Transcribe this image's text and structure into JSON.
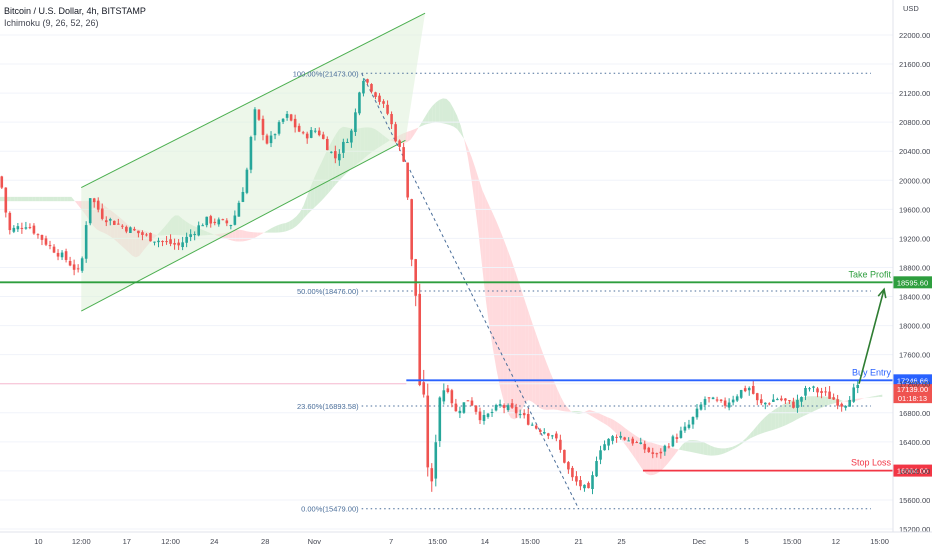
{
  "header": {
    "symbol": "Bitcoin / U.S. Dollar, 4h, BITSTAMP",
    "indicator": "Ichimoku (9, 26, 52, 26)"
  },
  "colors": {
    "up": "#26a69a",
    "down": "#ef5350",
    "take_profit": "#2e9e3e",
    "buy_entry": "#2962ff",
    "stop_loss": "#f23645",
    "fib": "#4a6e9a",
    "channel": "#4caf50",
    "kumo_green": "#c8e6c9",
    "kumo_red": "#ffcdd2",
    "target_arrow": "#2e7d32"
  },
  "chart_data": {
    "type": "candlestick",
    "title": "Bitcoin / U.S. Dollar, 4h, BITSTAMP",
    "y_axis_label": "USD",
    "ylim": [
      15200,
      22400
    ],
    "y_ticks": [
      15200,
      15600,
      16000,
      16400,
      16800,
      17200,
      17600,
      18000,
      18400,
      18800,
      19200,
      19600,
      20000,
      20400,
      20800,
      21200,
      21600,
      22000
    ],
    "x_ticks": [
      {
        "label": "10",
        "t": 0.043
      },
      {
        "label": "12:00",
        "t": 0.091
      },
      {
        "label": "17",
        "t": 0.142
      },
      {
        "label": "12:00",
        "t": 0.191
      },
      {
        "label": "24",
        "t": 0.24
      },
      {
        "label": "28",
        "t": 0.297
      },
      {
        "label": "Nov",
        "t": 0.352
      },
      {
        "label": "7",
        "t": 0.438
      },
      {
        "label": "15:00",
        "t": 0.49
      },
      {
        "label": "14",
        "t": 0.543
      },
      {
        "label": "15:00",
        "t": 0.594
      },
      {
        "label": "21",
        "t": 0.648
      },
      {
        "label": "25",
        "t": 0.696
      },
      {
        "label": "Dec",
        "t": 0.783
      },
      {
        "label": "5",
        "t": 0.836
      },
      {
        "label": "15:00",
        "t": 0.887
      },
      {
        "label": "12",
        "t": 0.936
      },
      {
        "label": "15:00",
        "t": 0.985
      }
    ],
    "price_path": [
      [
        0.0,
        20050
      ],
      [
        0.01,
        19300
      ],
      [
        0.03,
        19400
      ],
      [
        0.055,
        19100
      ],
      [
        0.075,
        18900
      ],
      [
        0.09,
        18700
      ],
      [
        0.1,
        19800
      ],
      [
        0.115,
        19500
      ],
      [
        0.14,
        19350
      ],
      [
        0.17,
        19200
      ],
      [
        0.2,
        19100
      ],
      [
        0.23,
        19450
      ],
      [
        0.26,
        19400
      ],
      [
        0.275,
        20000
      ],
      [
        0.285,
        20950
      ],
      [
        0.3,
        20500
      ],
      [
        0.32,
        20900
      ],
      [
        0.34,
        20600
      ],
      [
        0.355,
        20700
      ],
      [
        0.375,
        20300
      ],
      [
        0.395,
        20700
      ],
      [
        0.405,
        21450
      ],
      [
        0.42,
        21200
      ],
      [
        0.435,
        20900
      ],
      [
        0.445,
        20500
      ],
      [
        0.452,
        20300
      ],
      [
        0.458,
        19600
      ],
      [
        0.462,
        18600
      ],
      [
        0.466,
        18400
      ],
      [
        0.47,
        17200
      ],
      [
        0.475,
        16900
      ],
      [
        0.48,
        15900
      ],
      [
        0.485,
        15700
      ],
      [
        0.49,
        17000
      ],
      [
        0.5,
        17200
      ],
      [
        0.51,
        16800
      ],
      [
        0.525,
        17000
      ],
      [
        0.54,
        16700
      ],
      [
        0.56,
        16900
      ],
      [
        0.58,
        16800
      ],
      [
        0.6,
        16600
      ],
      [
        0.62,
        16500
      ],
      [
        0.64,
        15900
      ],
      [
        0.65,
        15800
      ],
      [
        0.66,
        15700
      ],
      [
        0.67,
        16300
      ],
      [
        0.69,
        16500
      ],
      [
        0.71,
        16400
      ],
      [
        0.735,
        16200
      ],
      [
        0.75,
        16400
      ],
      [
        0.77,
        16600
      ],
      [
        0.79,
        17000
      ],
      [
        0.81,
        16900
      ],
      [
        0.83,
        17100
      ],
      [
        0.84,
        17150
      ],
      [
        0.85,
        16900
      ],
      [
        0.87,
        17000
      ],
      [
        0.89,
        16900
      ],
      [
        0.905,
        17150
      ],
      [
        0.925,
        17050
      ],
      [
        0.945,
        16900
      ],
      [
        0.955,
        17100
      ],
      [
        0.962,
        17139
      ]
    ],
    "channel": {
      "lower": [
        [
          0.091,
          18200
        ],
        [
          0.454,
          20550
        ]
      ],
      "upper": [
        [
          0.091,
          19900
        ],
        [
          0.476,
          22300
        ]
      ]
    },
    "fibonacci": [
      {
        "label": "100.00%(21473.00)",
        "price": 21473.0
      },
      {
        "label": "50.00%(18476.00)",
        "price": 18476.0
      },
      {
        "label": "23.60%(16893.58)",
        "price": 16893.58
      },
      {
        "label": "0.00%(15479.00)",
        "price": 15479.0
      }
    ],
    "levels": [
      {
        "name": "Take Profit",
        "price": 18595.6,
        "price_label": "18595.60",
        "color": "#2e9e3e"
      },
      {
        "name": "Buy Entry",
        "price": 17246.66,
        "price_label": "17246.66",
        "color": "#2962ff"
      },
      {
        "name": "Stop Loss",
        "price": 16004.0,
        "price_label": "16004.00",
        "color": "#f23645"
      }
    ],
    "current_price": {
      "price": 17139.0,
      "label": "17139.00",
      "countdown": "01:18:13"
    },
    "target_arrow": {
      "from": [
        0.962,
        17200
      ],
      "to": [
        0.99,
        18500
      ]
    }
  }
}
